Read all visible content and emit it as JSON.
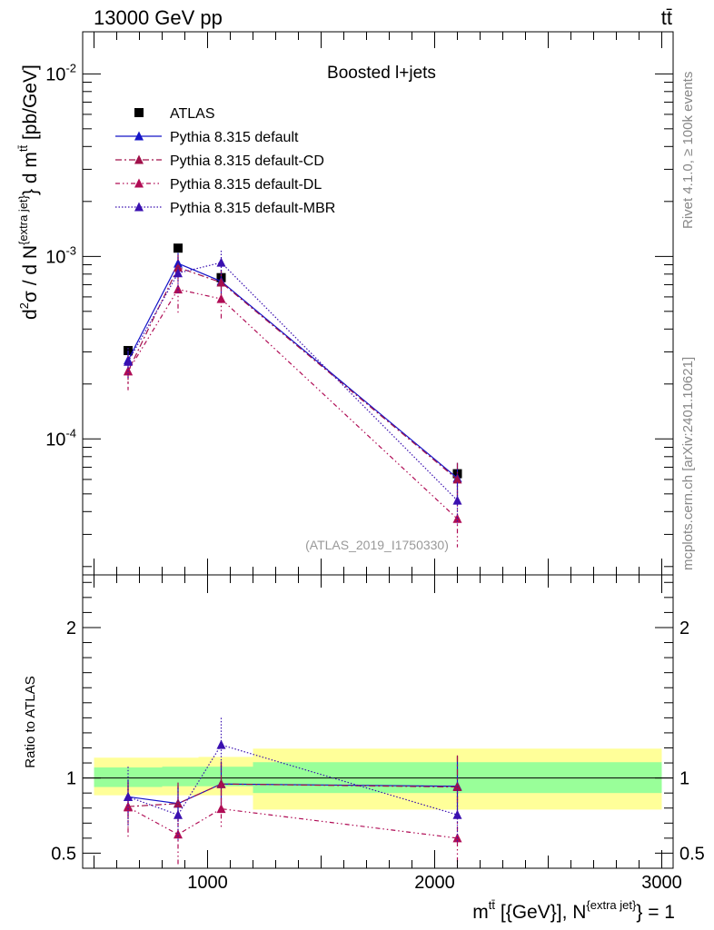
{
  "header": {
    "process": "13000 GeV pp",
    "final_state_main": "tt",
    "final_state_bar": "̄"
  },
  "side_labels": {
    "rivet": "Rivet 4.1.0, ≥ 100k events",
    "mcplots": "mcplots.cern.ch [arXiv:2401.10621]"
  },
  "chart_data": [
    {
      "type": "line",
      "title": "Boosted l+jets",
      "watermark": "(ATLAS_2019_I1750330)",
      "ylabel_parts": {
        "d": "d",
        "sq": "2",
        "sigma": "σ /  d N",
        "ejet": "{extra jet}",
        "brace": "} d m",
        "tt": "tt̄",
        "unit": " [pb/GeV]"
      },
      "yscale": "log",
      "ylim": [
        1.8e-05,
        0.017
      ],
      "xlim": [
        450,
        3050
      ],
      "yticks": [
        {
          "value": 0.01,
          "base": "10",
          "exp": "-2"
        },
        {
          "value": 0.001,
          "base": "10",
          "exp": "-3"
        },
        {
          "value": 0.0001,
          "base": "10",
          "exp": "-4"
        }
      ],
      "bins": [
        [
          500,
          800
        ],
        [
          800,
          960
        ],
        [
          960,
          1200
        ],
        [
          1200,
          3000
        ]
      ],
      "x": [
        650,
        870,
        1060,
        2100
      ],
      "legend": {
        "position": "top-left"
      },
      "series": [
        {
          "name": "ATLAS",
          "style": "data",
          "color": "#000000",
          "values": [
            0.000305,
            0.00111,
            0.000765,
            6.45e-05
          ]
        },
        {
          "name": "Pythia 8.315 default",
          "style": "solid",
          "color": "#1515c8",
          "values": [
            0.00027,
            0.000915,
            0.00073,
            6.1e-05
          ],
          "err_up": [
            3.5e-05,
            0.00013,
            0.00011,
            1.3e-05
          ],
          "err_down": [
            3.5e-05,
            0.00013,
            0.00011,
            1.3e-05
          ]
        },
        {
          "name": "Pythia 8.315 default-CD",
          "style": "dashdot",
          "color": "#a0104a",
          "values": [
            0.000235,
            0.00087,
            0.00072,
            6e-05
          ],
          "err_up": [
            4e-05,
            0.00015,
            0.00012,
            1.4e-05
          ],
          "err_down": [
            4e-05,
            0.00015,
            0.00012,
            1.4e-05
          ]
        },
        {
          "name": "Pythia 8.315 default-DL",
          "style": "dashdotdot",
          "color": "#b00c55",
          "values": [
            0.000235,
            0.00066,
            0.000585,
            3.65e-05
          ],
          "err_up": [
            5e-05,
            0.00015,
            0.00013,
            1.1e-05
          ],
          "err_down": [
            5e-05,
            0.00017,
            0.00013,
            1.1e-05
          ]
        },
        {
          "name": "Pythia 8.315 default-MBR",
          "style": "dotted",
          "color": "#3a10b0",
          "values": [
            0.000265,
            0.00081,
            0.000925,
            4.6e-05
          ],
          "err_up": [
            5e-05,
            0.00018,
            0.00015,
            1.2e-05
          ],
          "err_down": [
            5e-05,
            0.00018,
            0.00015,
            1.2e-05
          ]
        }
      ]
    },
    {
      "type": "line",
      "ylabel": "Ratio to ATLAS",
      "ylim": [
        0.4,
        2.35
      ],
      "xlim": [
        450,
        3050
      ],
      "yticks": [
        0.5,
        1,
        2
      ],
      "ytick_labels": [
        "0.5",
        "1",
        "2"
      ],
      "xticks": [
        1000,
        2000,
        3000
      ],
      "xtick_labels": [
        "1000",
        "2000",
        "3000"
      ],
      "xlabel_parts": {
        "m": "m",
        "tt": "tt̄",
        "mid": " [{GeV}], N",
        "ejet": "{extra jet}",
        "end": "} = 1"
      },
      "bands": [
        {
          "x": [
            500,
            800
          ],
          "stat": [
            0.94,
            1.07
          ],
          "total": [
            0.885,
            1.135
          ]
        },
        {
          "x": [
            800,
            960
          ],
          "stat": [
            0.945,
            1.075
          ],
          "total": [
            0.885,
            1.135
          ]
        },
        {
          "x": [
            960,
            1200
          ],
          "stat": [
            0.945,
            1.075
          ],
          "total": [
            0.885,
            1.14
          ]
        },
        {
          "x": [
            1200,
            3000
          ],
          "stat": [
            0.9,
            1.105
          ],
          "total": [
            0.79,
            1.195
          ]
        }
      ],
      "series": [
        {
          "name": "Pythia 8.315 default",
          "values": [
            0.875,
            0.83,
            0.96,
            0.945
          ],
          "err_up": [
            0.11,
            0.12,
            0.14,
            0.2
          ],
          "err_down": [
            0.11,
            0.12,
            0.14,
            0.2
          ]
        },
        {
          "name": "Pythia 8.315 default-CD",
          "values": [
            0.81,
            0.83,
            0.96,
            0.94
          ],
          "err_up": [
            0.14,
            0.14,
            0.15,
            0.21
          ],
          "err_down": [
            0.14,
            0.14,
            0.15,
            0.21
          ]
        },
        {
          "name": "Pythia 8.315 default-DL",
          "values": [
            0.805,
            0.625,
            0.795,
            0.6
          ],
          "err_up": [
            0.17,
            0.14,
            0.17,
            0.18
          ],
          "err_down": [
            0.21,
            0.21,
            0.13,
            0.22
          ]
        },
        {
          "name": "Pythia 8.315 default-MBR",
          "values": [
            0.875,
            0.755,
            1.22,
            0.755
          ],
          "err_up": [
            0.2,
            0.18,
            0.18,
            0.19
          ],
          "err_down": [
            0.2,
            0.18,
            0.18,
            0.19
          ]
        }
      ]
    }
  ]
}
